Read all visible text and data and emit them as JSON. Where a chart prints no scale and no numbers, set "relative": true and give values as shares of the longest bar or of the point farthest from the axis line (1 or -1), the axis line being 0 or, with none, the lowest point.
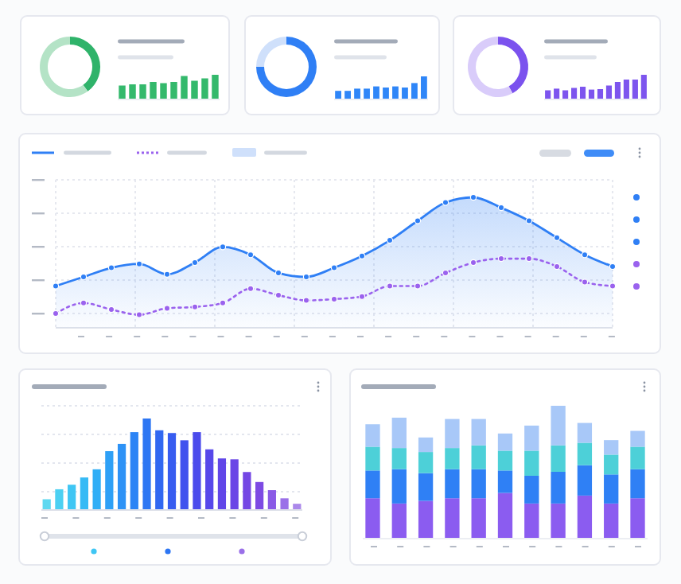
{
  "chart_data": [
    {
      "type": "donut",
      "categories": [
        null,
        null
      ],
      "values": [
        40,
        60
      ],
      "colors": [
        "#2fb36a",
        "#b4e3c6"
      ]
    },
    {
      "type": "bar",
      "relative": true,
      "categories": [
        null,
        null,
        null,
        null,
        null,
        null,
        null,
        null,
        null,
        null
      ],
      "values": [
        0.55,
        0.6,
        0.6,
        0.7,
        0.65,
        0.7,
        0.95,
        0.75,
        0.85,
        1
      ],
      "color": "#34b96c"
    },
    {
      "type": "donut",
      "categories": [
        null,
        null
      ],
      "values": [
        75,
        25
      ],
      "colors": [
        "#2f7ff5",
        "#cfe0fb"
      ]
    },
    {
      "type": "bar",
      "relative": true,
      "categories": [
        null,
        null,
        null,
        null,
        null,
        null,
        null,
        null,
        null,
        null
      ],
      "values": [
        0.35,
        0.35,
        0.45,
        0.45,
        0.55,
        0.5,
        0.55,
        0.5,
        0.7,
        1
      ],
      "color": "#2f86f8"
    },
    {
      "type": "donut",
      "categories": [
        null,
        null
      ],
      "values": [
        42,
        58
      ],
      "colors": [
        "#7b52ee",
        "#d9ccfa"
      ]
    },
    {
      "type": "bar",
      "relative": true,
      "categories": [
        null,
        null,
        null,
        null,
        null,
        null,
        null,
        null,
        null,
        null,
        null,
        null
      ],
      "values": [
        0.35,
        0.42,
        0.35,
        0.45,
        0.5,
        0.38,
        0.4,
        0.55,
        0.7,
        0.8,
        0.8,
        1
      ],
      "color": "#7d55ee"
    },
    {
      "type": "line",
      "relative": true,
      "grid": true,
      "marker": "circle",
      "categories": [
        null,
        null,
        null,
        null,
        null,
        null,
        null,
        null,
        null,
        null,
        null,
        null,
        null,
        null,
        null,
        null,
        null,
        null,
        null,
        null,
        null
      ],
      "series": [
        {
          "type": "area",
          "color": "#2f7ff5",
          "line_style": "solid",
          "values": [
            0.32,
            0.39,
            0.46,
            0.49,
            0.41,
            0.5,
            0.62,
            0.56,
            0.42,
            0.39,
            0.46,
            0.55,
            0.67,
            0.82,
            0.96,
            1,
            0.92,
            0.82,
            0.69,
            0.56,
            0.47
          ]
        },
        {
          "type": "line",
          "color": "#9a62ee",
          "line_style": "dotted",
          "values": [
            0.11,
            0.19,
            0.14,
            0.1,
            0.15,
            0.16,
            0.19,
            0.3,
            0.25,
            0.21,
            0.22,
            0.24,
            0.32,
            0.32,
            0.42,
            0.5,
            0.53,
            0.53,
            0.47,
            0.35,
            0.32
          ]
        }
      ]
    },
    {
      "type": "bar",
      "relative": true,
      "grid": "y",
      "categories": [
        null,
        null,
        null,
        null,
        null,
        null,
        null,
        null,
        null,
        null,
        null,
        null,
        null,
        null,
        null,
        null,
        null,
        null,
        null,
        null,
        null
      ],
      "values": [
        0.11,
        0.22,
        0.27,
        0.35,
        0.44,
        0.64,
        0.72,
        0.85,
        1,
        0.87,
        0.84,
        0.76,
        0.85,
        0.66,
        0.56,
        0.55,
        0.41,
        0.3,
        0.21,
        0.12,
        0.06
      ],
      "colors": [
        "#5fd8f0",
        "#4cd0f2",
        "#3fc6f4",
        "#36baf5",
        "#30aef6",
        "#2ea0f6",
        "#2d92f6",
        "#2c84f5",
        "#2d76f3",
        "#3168f1",
        "#375cf0",
        "#4052ee",
        "#4b4bec",
        "#5748ea",
        "#6146e8",
        "#6a46e6",
        "#7447e4",
        "#7d4ae3",
        "#8a5ae6",
        "#9a70e8",
        "#ab88ea"
      ]
    },
    {
      "type": "bar",
      "relative": true,
      "stacked": true,
      "categories": [
        null,
        null,
        null,
        null,
        null,
        null,
        null,
        null,
        null,
        null,
        null
      ],
      "series": [
        {
          "color": "#8b5cf0",
          "values": [
            0.3,
            0.26,
            0.28,
            0.3,
            0.3,
            0.34,
            0.26,
            0.26,
            0.32,
            0.26,
            0.3
          ]
        },
        {
          "color": "#2f80f5",
          "values": [
            0.21,
            0.26,
            0.21,
            0.22,
            0.22,
            0.17,
            0.21,
            0.24,
            0.23,
            0.22,
            0.22
          ]
        },
        {
          "color": "#4dd0d8",
          "values": [
            0.18,
            0.16,
            0.16,
            0.16,
            0.18,
            0.15,
            0.19,
            0.2,
            0.17,
            0.15,
            0.17
          ]
        },
        {
          "color": "#a8c8f8",
          "values": [
            0.17,
            0.23,
            0.11,
            0.22,
            0.2,
            0.13,
            0.19,
            0.3,
            0.15,
            0.11,
            0.12
          ]
        }
      ]
    }
  ]
}
